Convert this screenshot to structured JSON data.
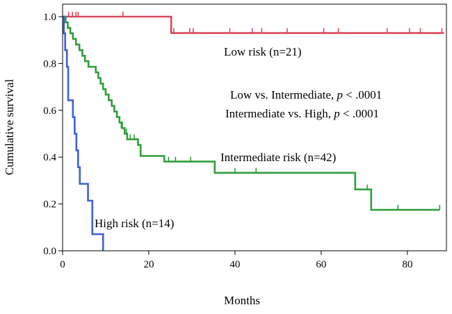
{
  "chart_data": {
    "type": "line",
    "subtype": "kaplan-meier",
    "title": "",
    "xlabel": "Months",
    "ylabel": "Cumulative survival",
    "xlim": [
      0,
      89
    ],
    "ylim": [
      0,
      1.05
    ],
    "x_ticks": [
      0,
      20,
      40,
      60,
      80
    ],
    "y_ticks": [
      0.0,
      0.2,
      0.4,
      0.6,
      0.8,
      1.0
    ],
    "y_tick_labels": [
      "0.0",
      "0.2",
      "0.4",
      "0.6",
      "0.8",
      "1.0"
    ],
    "grid": false,
    "series": [
      {
        "name": "Low risk",
        "label": "Low risk (n=21)",
        "color": "#d9485a",
        "steps": [
          [
            0,
            1.0
          ],
          [
            25.2,
            1.0
          ],
          [
            25.2,
            0.93
          ],
          [
            88.5,
            0.93
          ]
        ],
        "censor": [
          [
            1.4,
            1.0
          ],
          [
            2.3,
            1.0
          ],
          [
            3.1,
            1.0
          ],
          [
            3.6,
            1.0
          ],
          [
            14.0,
            1.0
          ],
          [
            25.8,
            0.93
          ],
          [
            29.5,
            0.93
          ],
          [
            30.3,
            0.93
          ],
          [
            38.8,
            0.93
          ],
          [
            44.0,
            0.93
          ],
          [
            46.2,
            0.93
          ],
          [
            52.1,
            0.93
          ],
          [
            60.6,
            0.93
          ],
          [
            64.0,
            0.93
          ],
          [
            75.3,
            0.93
          ],
          [
            80.5,
            0.93
          ],
          [
            83.0,
            0.93
          ],
          [
            88.0,
            0.93
          ]
        ]
      },
      {
        "name": "Intermediate risk",
        "label": "Intermediate risk (n=42)",
        "color": "#2f9e3a",
        "steps": [
          [
            0,
            1.0
          ],
          [
            0.7,
            1.0
          ],
          [
            0.7,
            0.976
          ],
          [
            1.2,
            0.976
          ],
          [
            1.2,
            0.952
          ],
          [
            1.8,
            0.952
          ],
          [
            1.8,
            0.929
          ],
          [
            2.4,
            0.929
          ],
          [
            2.4,
            0.905
          ],
          [
            3.1,
            0.905
          ],
          [
            3.1,
            0.881
          ],
          [
            3.9,
            0.881
          ],
          [
            3.9,
            0.857
          ],
          [
            4.6,
            0.857
          ],
          [
            4.6,
            0.833
          ],
          [
            5.2,
            0.833
          ],
          [
            5.2,
            0.81
          ],
          [
            6.0,
            0.81
          ],
          [
            6.0,
            0.786
          ],
          [
            7.7,
            0.786
          ],
          [
            7.7,
            0.762
          ],
          [
            8.3,
            0.762
          ],
          [
            8.3,
            0.738
          ],
          [
            8.8,
            0.738
          ],
          [
            8.8,
            0.714
          ],
          [
            9.4,
            0.714
          ],
          [
            9.4,
            0.69
          ],
          [
            10.0,
            0.69
          ],
          [
            10.0,
            0.667
          ],
          [
            10.7,
            0.667
          ],
          [
            10.7,
            0.643
          ],
          [
            11.4,
            0.643
          ],
          [
            11.4,
            0.619
          ],
          [
            12.0,
            0.619
          ],
          [
            12.0,
            0.595
          ],
          [
            12.6,
            0.595
          ],
          [
            12.6,
            0.571
          ],
          [
            13.2,
            0.571
          ],
          [
            13.2,
            0.548
          ],
          [
            13.8,
            0.548
          ],
          [
            13.8,
            0.524
          ],
          [
            14.4,
            0.524
          ],
          [
            14.4,
            0.5
          ],
          [
            15.0,
            0.5
          ],
          [
            15.0,
            0.476
          ],
          [
            17.5,
            0.476
          ],
          [
            17.5,
            0.452
          ],
          [
            18.1,
            0.452
          ],
          [
            18.1,
            0.405
          ],
          [
            23.6,
            0.405
          ],
          [
            23.6,
            0.381
          ],
          [
            35.3,
            0.381
          ],
          [
            35.3,
            0.333
          ],
          [
            67.9,
            0.333
          ],
          [
            67.9,
            0.262
          ],
          [
            71.6,
            0.262
          ],
          [
            71.6,
            0.175
          ],
          [
            87.5,
            0.175
          ]
        ],
        "censor": [
          [
            13.6,
            0.524
          ],
          [
            14.8,
            0.5
          ],
          [
            15.7,
            0.476
          ],
          [
            16.6,
            0.476
          ],
          [
            24.6,
            0.381
          ],
          [
            26.2,
            0.381
          ],
          [
            29.7,
            0.381
          ],
          [
            40.0,
            0.333
          ],
          [
            44.9,
            0.333
          ],
          [
            70.7,
            0.262
          ],
          [
            77.8,
            0.175
          ],
          [
            87.5,
            0.175
          ]
        ]
      },
      {
        "name": "High risk",
        "label": "High risk (n=14)",
        "color": "#3b62d8",
        "steps": [
          [
            0,
            1.0
          ],
          [
            0.3,
            1.0
          ],
          [
            0.3,
            0.929
          ],
          [
            0.6,
            0.929
          ],
          [
            0.6,
            0.857
          ],
          [
            1.0,
            0.857
          ],
          [
            1.0,
            0.786
          ],
          [
            1.3,
            0.786
          ],
          [
            1.3,
            0.643
          ],
          [
            2.4,
            0.643
          ],
          [
            2.4,
            0.571
          ],
          [
            2.8,
            0.571
          ],
          [
            2.8,
            0.5
          ],
          [
            3.2,
            0.5
          ],
          [
            3.2,
            0.429
          ],
          [
            3.6,
            0.429
          ],
          [
            3.6,
            0.357
          ],
          [
            4.0,
            0.357
          ],
          [
            4.0,
            0.286
          ],
          [
            5.9,
            0.286
          ],
          [
            5.9,
            0.214
          ],
          [
            6.9,
            0.214
          ],
          [
            6.9,
            0.071
          ],
          [
            9.4,
            0.071
          ],
          [
            9.4,
            0.0
          ]
        ],
        "censor": []
      }
    ],
    "annotations": {
      "comparison_1_prefix": "Low vs. Intermediate, ",
      "comparison_1_p": "p",
      "comparison_1_suffix": " < .0001",
      "comparison_2_prefix": "Intermediate vs. High, ",
      "comparison_2_p": "p",
      "comparison_2_suffix": " < .0001"
    }
  }
}
